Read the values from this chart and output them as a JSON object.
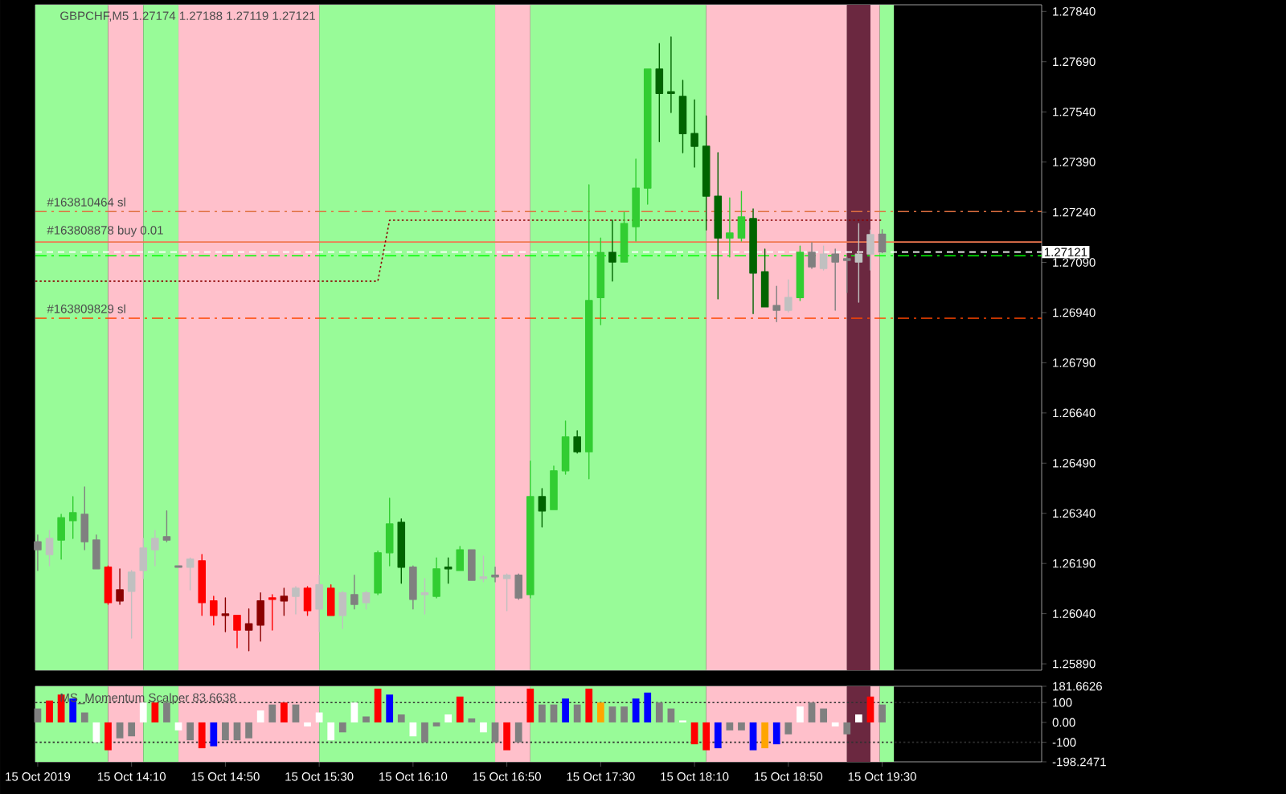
{
  "chart_data": [
    {
      "type": "candlestick",
      "title": "GBPCHF,M5  1.27174 1.27188 1.27119 1.27121",
      "x": [
        "2019-10-15T13:30",
        "2019-10-15T13:35",
        "2019-10-15T13:40",
        "2019-10-15T13:45",
        "2019-10-15T13:50",
        "2019-10-15T13:55",
        "2019-10-15T14:00",
        "2019-10-15T14:05",
        "2019-10-15T14:10",
        "2019-10-15T14:15",
        "2019-10-15T14:20",
        "2019-10-15T14:25",
        "2019-10-15T14:30",
        "2019-10-15T14:35",
        "2019-10-15T14:40",
        "2019-10-15T14:45",
        "2019-10-15T14:50",
        "2019-10-15T14:55",
        "2019-10-15T15:00",
        "2019-10-15T15:05",
        "2019-10-15T15:10",
        "2019-10-15T15:15",
        "2019-10-15T15:20",
        "2019-10-15T15:25",
        "2019-10-15T15:30",
        "2019-10-15T15:35",
        "2019-10-15T15:40",
        "2019-10-15T15:45",
        "2019-10-15T15:50",
        "2019-10-15T15:55",
        "2019-10-15T16:00",
        "2019-10-15T16:05",
        "2019-10-15T16:10",
        "2019-10-15T16:15",
        "2019-10-15T16:20",
        "2019-10-15T16:25",
        "2019-10-15T16:30",
        "2019-10-15T16:35",
        "2019-10-15T16:40",
        "2019-10-15T16:45",
        "2019-10-15T16:50",
        "2019-10-15T16:55",
        "2019-10-15T17:00",
        "2019-10-15T17:05",
        "2019-10-15T17:10",
        "2019-10-15T17:15",
        "2019-10-15T17:20",
        "2019-10-15T17:25",
        "2019-10-15T17:30",
        "2019-10-15T17:35",
        "2019-10-15T17:40",
        "2019-10-15T17:45",
        "2019-10-15T17:50",
        "2019-10-15T17:55",
        "2019-10-15T18:00",
        "2019-10-15T18:05",
        "2019-10-15T18:10",
        "2019-10-15T18:15",
        "2019-10-15T18:20",
        "2019-10-15T18:25",
        "2019-10-15T18:30",
        "2019-10-15T18:35",
        "2019-10-15T18:40",
        "2019-10-15T18:45",
        "2019-10-15T18:50",
        "2019-10-15T18:55",
        "2019-10-15T19:00",
        "2019-10-15T19:05",
        "2019-10-15T19:10",
        "2019-10-15T19:15",
        "2019-10-15T19:20",
        "2019-10-15T19:25",
        "2019-10-15T19:30"
      ],
      "ohlc": [
        [
          1.26255,
          1.26275,
          1.26169,
          1.26231
        ],
        [
          1.26217,
          1.26289,
          1.26183,
          1.26265
        ],
        [
          1.2626,
          1.26337,
          1.26203,
          1.26327
        ],
        [
          1.26318,
          1.2639,
          1.26265,
          1.26342
        ],
        [
          1.26337,
          1.26419,
          1.26231,
          1.26255
        ],
        [
          1.2626,
          1.26275,
          1.26174,
          1.26174
        ],
        [
          1.26179,
          1.26183,
          1.26068,
          1.26073
        ],
        [
          1.26078,
          1.26174,
          1.26068,
          1.26111
        ],
        [
          1.26107,
          1.26169,
          1.25967,
          1.26164
        ],
        [
          1.26169,
          1.26265,
          1.26145,
          1.26236
        ],
        [
          1.26231,
          1.26289,
          1.26183,
          1.26265
        ],
        [
          1.2627,
          1.26347,
          1.26255,
          1.2626
        ],
        [
          1.26183,
          1.26183,
          1.26179,
          1.26179
        ],
        [
          1.26179,
          1.26207,
          1.26111,
          1.26203
        ],
        [
          1.26198,
          1.26217,
          1.26035,
          1.26073
        ],
        [
          1.26078,
          1.26092,
          1.26006,
          1.26035
        ],
        [
          1.26039,
          1.26087,
          1.25986,
          1.26035
        ],
        [
          1.26035,
          1.26035,
          1.25938,
          1.25991
        ],
        [
          1.25991,
          1.26054,
          1.25929,
          1.2601
        ],
        [
          1.26006,
          1.26102,
          1.25958,
          1.26078
        ],
        [
          1.26087,
          1.26097,
          1.25991,
          1.26083
        ],
        [
          1.26078,
          1.26116,
          1.26035,
          1.26092
        ],
        [
          1.26092,
          1.26121,
          1.26039,
          1.26116
        ],
        [
          1.26116,
          1.26121,
          1.26035,
          1.26049
        ],
        [
          1.26054,
          1.26155,
          1.25986,
          1.26126
        ],
        [
          1.26116,
          1.26126,
          1.26035,
          1.26035
        ],
        [
          1.26035,
          1.26107,
          1.25996,
          1.26102
        ],
        [
          1.26097,
          1.26155,
          1.26054,
          1.26068
        ],
        [
          1.26073,
          1.26107,
          1.26054,
          1.26102
        ],
        [
          1.26102,
          1.26227,
          1.26097,
          1.26222
        ],
        [
          1.26222,
          1.26385,
          1.26183,
          1.26308
        ],
        [
          1.26313,
          1.26323,
          1.26131,
          1.26179
        ],
        [
          1.26179,
          1.26183,
          1.26054,
          1.26083
        ],
        [
          1.26102,
          1.26145,
          1.26039,
          1.26097
        ],
        [
          1.26092,
          1.26207,
          1.26087,
          1.26174
        ],
        [
          1.26179,
          1.26207,
          1.26131,
          1.26174
        ],
        [
          1.26169,
          1.26241,
          1.26169,
          1.26231
        ],
        [
          1.26231,
          1.26231,
          1.2614,
          1.2614
        ],
        [
          1.2615,
          1.26212,
          1.26135,
          1.26145
        ],
        [
          1.26155,
          1.26179,
          1.26135,
          1.2615
        ],
        [
          1.26145,
          1.26159,
          1.26049,
          1.26155
        ],
        [
          1.26155,
          1.26159,
          1.26083,
          1.26087
        ],
        [
          1.26097,
          1.26496,
          1.26087,
          1.2639
        ],
        [
          1.2639,
          1.26414,
          1.26299,
          1.26347
        ],
        [
          1.26351,
          1.26481,
          1.26351,
          1.26467
        ],
        [
          1.26467,
          1.26616,
          1.26457,
          1.26568
        ],
        [
          1.26568,
          1.26587,
          1.2652,
          1.26524
        ],
        [
          1.26524,
          1.27322,
          1.26443,
          1.26976
        ],
        [
          1.26985,
          1.27163,
          1.26904,
          1.2712
        ],
        [
          1.2712,
          1.27216,
          1.27034,
          1.27091
        ],
        [
          1.27091,
          1.2724,
          1.27091,
          1.27206
        ],
        [
          1.27197,
          1.27399,
          1.27154,
          1.27312
        ],
        [
          1.27312,
          1.27668,
          1.27264,
          1.27668
        ],
        [
          1.27668,
          1.27744,
          1.27451,
          1.27595
        ],
        [
          1.276,
          1.27764,
          1.27538,
          1.27595
        ],
        [
          1.27586,
          1.27634,
          1.27418,
          1.27475
        ],
        [
          1.27475,
          1.27576,
          1.27375,
          1.27437
        ],
        [
          1.27437,
          1.27528,
          1.27187,
          1.27288
        ],
        [
          1.27288,
          1.27418,
          1.26981,
          1.27163
        ],
        [
          1.27163,
          1.27283,
          1.27106,
          1.27178
        ],
        [
          1.27163,
          1.27302,
          1.27154,
          1.27226
        ],
        [
          1.27221,
          1.2725,
          1.26937,
          1.27058
        ],
        [
          1.27062,
          1.2713,
          1.26957,
          1.26957
        ],
        [
          1.26961,
          1.27019,
          1.26913,
          1.26947
        ],
        [
          1.26947,
          1.27038,
          1.26942,
          1.26985
        ],
        [
          1.26985,
          1.27139,
          1.26976,
          1.2712
        ],
        [
          1.2712,
          1.27149,
          1.27072,
          1.27077
        ],
        [
          1.27072,
          1.27139,
          1.27067,
          1.27115
        ],
        [
          1.27115,
          1.2713,
          1.26947,
          1.27091
        ],
        [
          1.27101,
          1.27106,
          1.27,
          1.27096
        ],
        [
          1.27091,
          1.27206,
          1.26971,
          1.27115
        ],
        [
          1.27115,
          1.27187,
          1.27067,
          1.27173
        ],
        [
          1.27174,
          1.27188,
          1.27119,
          1.27121
        ]
      ],
      "colors": [
        "#808080",
        "#c0c0c0",
        "#32cd32",
        "#32cd32",
        "#808080",
        "#808080",
        "#ff0000",
        "#8b0000",
        "#c0c0c0",
        "#c0c0c0",
        "#c0c0c0",
        "#808080",
        "#808080",
        "#c0c0c0",
        "#ff0000",
        "#ff0000",
        "#8b0000",
        "#ff0000",
        "#8b0000",
        "#8b0000",
        "#ff0000",
        "#8b0000",
        "#c0c0c0",
        "#ff0000",
        "#c0c0c0",
        "#ff0000",
        "#c0c0c0",
        "#808080",
        "#c0c0c0",
        "#32cd32",
        "#32cd32",
        "#006400",
        "#808080",
        "#c0c0c0",
        "#32cd32",
        "#006400",
        "#32cd32",
        "#808080",
        "#c0c0c0",
        "#808080",
        "#c0c0c0",
        "#808080",
        "#32cd32",
        "#006400",
        "#32cd32",
        "#32cd32",
        "#006400",
        "#32cd32",
        "#32cd32",
        "#006400",
        "#32cd32",
        "#32cd32",
        "#32cd32",
        "#006400",
        "#006400",
        "#006400",
        "#006400",
        "#006400",
        "#006400",
        "#32cd32",
        "#32cd32",
        "#006400",
        "#006400",
        "#808080",
        "#c0c0c0",
        "#32cd32",
        "#808080",
        "#c0c0c0",
        "#808080",
        "#808080",
        "#c0c0c0",
        "#c0c0c0",
        "#808080"
      ],
      "series": [
        {
          "type": "line",
          "color": "#8b0000",
          "line_style": "dotted",
          "x": [
            "2019-10-15T13:29",
            "2019-10-15T15:55",
            "2019-10-15T16:00",
            "2019-10-15T19:30"
          ],
          "values": [
            1.27034,
            1.27034,
            1.27216,
            1.27216
          ]
        }
      ],
      "xlim": [
        "2019-10-15T13:29",
        "2019-10-15T20:38"
      ],
      "ylim": [
        1.25871,
        1.2786
      ],
      "yticks": [
        {
          "value": 1.2589,
          "label": "1.25890"
        },
        {
          "value": 1.2604,
          "label": "1.26040"
        },
        {
          "value": 1.2619,
          "label": "1.26190"
        },
        {
          "value": 1.2634,
          "label": "1.26340"
        },
        {
          "value": 1.2649,
          "label": "1.26490"
        },
        {
          "value": 1.2664,
          "label": "1.26640"
        },
        {
          "value": 1.2679,
          "label": "1.26790"
        },
        {
          "value": 1.2694,
          "label": "1.26940"
        },
        {
          "value": 1.2709,
          "label": "1.27090"
        },
        {
          "value": 1.2724,
          "label": "1.27240"
        },
        {
          "value": 1.2739,
          "label": "1.27390"
        },
        {
          "value": 1.2754,
          "label": "1.27540"
        },
        {
          "value": 1.2769,
          "label": "1.27690"
        },
        {
          "value": 1.2784,
          "label": "1.27840"
        }
      ],
      "tick_labels": "y",
      "ref_lines": [
        {
          "axis": "y",
          "value": 1.27242,
          "label": "#163810464 sl",
          "color": "#e07040",
          "line_style": "dashdot"
        },
        {
          "axis": "y",
          "value": 1.27151,
          "label": "#163808878 buy 0.01",
          "color": "#f07850",
          "line_style": "solid"
        },
        {
          "axis": "y",
          "value": 1.27121,
          "label": "1.27121",
          "color": "#ffffff",
          "line_style": "dashed"
        },
        {
          "axis": "y",
          "value": 1.2711,
          "color": "#00ff00",
          "line_style": "dashdot"
        },
        {
          "axis": "y",
          "value": 1.26923,
          "label": "#163809829 sl",
          "color": "#ff4500",
          "line_style": "dashdot"
        }
      ],
      "bands": [
        {
          "axis": "x",
          "from": "2019-10-15T13:29",
          "to": "2019-10-15T14:00",
          "color": "#98fb98"
        },
        {
          "axis": "x",
          "from": "2019-10-15T14:00",
          "to": "2019-10-15T14:15",
          "color": "#ffc0cb"
        },
        {
          "axis": "x",
          "from": "2019-10-15T14:15",
          "to": "2019-10-15T14:30",
          "color": "#98fb98"
        },
        {
          "axis": "x",
          "from": "2019-10-15T14:30",
          "to": "2019-10-15T15:30",
          "color": "#ffc0cb"
        },
        {
          "axis": "x",
          "from": "2019-10-15T15:30",
          "to": "2019-10-15T16:45",
          "color": "#98fb98"
        },
        {
          "axis": "x",
          "from": "2019-10-15T16:45",
          "to": "2019-10-15T17:00",
          "color": "#ffc0cb"
        },
        {
          "axis": "x",
          "from": "2019-10-15T17:00",
          "to": "2019-10-15T18:15",
          "color": "#98fb98"
        },
        {
          "axis": "x",
          "from": "2019-10-15T18:15",
          "to": "2019-10-15T19:15",
          "color": "#ffc0cb"
        },
        {
          "axis": "x",
          "from": "2019-10-15T19:15",
          "to": "2019-10-15T19:25",
          "color": "#6b2840"
        },
        {
          "axis": "x",
          "from": "2019-10-15T19:25",
          "to": "2019-10-15T19:29",
          "color": "#ffc0cb"
        },
        {
          "axis": "x",
          "from": "2019-10-15T19:29",
          "to": "2019-10-15T19:35",
          "color": "#98fb98"
        }
      ]
    },
    {
      "type": "bar",
      "title": "MS_Momentum Scalper 83.6638",
      "x": [
        "2019-10-15T13:30",
        "2019-10-15T13:35",
        "2019-10-15T13:40",
        "2019-10-15T13:45",
        "2019-10-15T13:50",
        "2019-10-15T13:55",
        "2019-10-15T14:00",
        "2019-10-15T14:05",
        "2019-10-15T14:10",
        "2019-10-15T14:15",
        "2019-10-15T14:20",
        "2019-10-15T14:25",
        "2019-10-15T14:30",
        "2019-10-15T14:35",
        "2019-10-15T14:40",
        "2019-10-15T14:45",
        "2019-10-15T14:50",
        "2019-10-15T14:55",
        "2019-10-15T15:00",
        "2019-10-15T15:05",
        "2019-10-15T15:10",
        "2019-10-15T15:15",
        "2019-10-15T15:20",
        "2019-10-15T15:25",
        "2019-10-15T15:30",
        "2019-10-15T15:35",
        "2019-10-15T15:40",
        "2019-10-15T15:45",
        "2019-10-15T15:50",
        "2019-10-15T15:55",
        "2019-10-15T16:00",
        "2019-10-15T16:05",
        "2019-10-15T16:10",
        "2019-10-15T16:15",
        "2019-10-15T16:20",
        "2019-10-15T16:25",
        "2019-10-15T16:30",
        "2019-10-15T16:35",
        "2019-10-15T16:40",
        "2019-10-15T16:45",
        "2019-10-15T16:50",
        "2019-10-15T16:55",
        "2019-10-15T17:00",
        "2019-10-15T17:05",
        "2019-10-15T17:10",
        "2019-10-15T17:15",
        "2019-10-15T17:20",
        "2019-10-15T17:25",
        "2019-10-15T17:30",
        "2019-10-15T17:35",
        "2019-10-15T17:40",
        "2019-10-15T17:45",
        "2019-10-15T17:50",
        "2019-10-15T17:55",
        "2019-10-15T18:00",
        "2019-10-15T18:05",
        "2019-10-15T18:10",
        "2019-10-15T18:15",
        "2019-10-15T18:20",
        "2019-10-15T18:25",
        "2019-10-15T18:30",
        "2019-10-15T18:35",
        "2019-10-15T18:40",
        "2019-10-15T18:45",
        "2019-10-15T18:50",
        "2019-10-15T18:55",
        "2019-10-15T19:00",
        "2019-10-15T19:05",
        "2019-10-15T19:10",
        "2019-10-15T19:15",
        "2019-10-15T19:20",
        "2019-10-15T19:25",
        "2019-10-15T19:30"
      ],
      "values": [
        70,
        110,
        140,
        120,
        50,
        -100,
        -140,
        -80,
        -70,
        100,
        100,
        100,
        -40,
        -90,
        -130,
        -120,
        -90,
        -90,
        -80,
        60,
        90,
        100,
        90,
        -20,
        50,
        -90,
        -50,
        100,
        30,
        170,
        140,
        40,
        -70,
        -100,
        -20,
        40,
        130,
        20,
        -50,
        -100,
        -140,
        -100,
        170,
        90,
        90,
        120,
        90,
        170,
        100,
        80,
        80,
        120,
        150,
        100,
        70,
        10,
        -110,
        -140,
        -130,
        -40,
        -40,
        -140,
        -130,
        -110,
        -60,
        80,
        100,
        70,
        -20,
        -60,
        40,
        130,
        90
      ],
      "colors": [
        "#808080",
        "#ff0000",
        "#ff0000",
        "#0000ff",
        "#808080",
        "#ffffff",
        "#ff0000",
        "#808080",
        "#808080",
        "#ffffff",
        "#ff0000",
        "#808080",
        "#ffffff",
        "#808080",
        "#ff0000",
        "#0000ff",
        "#808080",
        "#808080",
        "#808080",
        "#ffffff",
        "#808080",
        "#ff0000",
        "#808080",
        "#ffffff",
        "#ffffff",
        "#ffffff",
        "#808080",
        "#ffffff",
        "#808080",
        "#ff0000",
        "#0000ff",
        "#808080",
        "#ffffff",
        "#808080",
        "#808080",
        "#ffffff",
        "#ff0000",
        "#808080",
        "#ffffff",
        "#808080",
        "#ff0000",
        "#808080",
        "#ff0000",
        "#808080",
        "#808080",
        "#0000ff",
        "#808080",
        "#ff0000",
        "#ffa500",
        "#808080",
        "#808080",
        "#0000ff",
        "#0000ff",
        "#808080",
        "#808080",
        "#ffffff",
        "#ff0000",
        "#ff0000",
        "#0000ff",
        "#808080",
        "#808080",
        "#0000ff",
        "#ffa500",
        "#0000ff",
        "#808080",
        "#ffffff",
        "#808080",
        "#808080",
        "#ffffff",
        "#808080",
        "#ffffff",
        "#ff0000",
        "#808080"
      ],
      "xlim": [
        "2019-10-15T13:29",
        "2019-10-15T20:38"
      ],
      "ylim": [
        -198.2471,
        181.6626
      ],
      "xticks": [
        {
          "value": "2019-10-15T13:30",
          "label": "15 Oct 2019"
        },
        {
          "value": "2019-10-15T14:10",
          "label": "15 Oct 14:10"
        },
        {
          "value": "2019-10-15T14:50",
          "label": "15 Oct 14:50"
        },
        {
          "value": "2019-10-15T15:30",
          "label": "15 Oct 15:30"
        },
        {
          "value": "2019-10-15T16:10",
          "label": "15 Oct 16:10"
        },
        {
          "value": "2019-10-15T16:50",
          "label": "15 Oct 16:50"
        },
        {
          "value": "2019-10-15T17:30",
          "label": "15 Oct 17:30"
        },
        {
          "value": "2019-10-15T18:10",
          "label": "15 Oct 18:10"
        },
        {
          "value": "2019-10-15T18:50",
          "label": "15 Oct 18:50"
        },
        {
          "value": "2019-10-15T19:30",
          "label": "15 Oct 19:30"
        }
      ],
      "yticks": [
        181.6626,
        100,
        {
          "value": 0,
          "label": "0.00"
        },
        -100,
        -198.2471
      ],
      "ref_lines": [
        {
          "axis": "y",
          "value": 100,
          "color": "#303030",
          "line_style": "dotted"
        },
        {
          "axis": "y",
          "value": -100,
          "color": "#303030",
          "line_style": "dotted"
        }
      ],
      "bands": [
        {
          "axis": "x",
          "from": "2019-10-15T13:29",
          "to": "2019-10-15T14:00",
          "color": "#98fb98"
        },
        {
          "axis": "x",
          "from": "2019-10-15T14:00",
          "to": "2019-10-15T14:15",
          "color": "#ffc0cb"
        },
        {
          "axis": "x",
          "from": "2019-10-15T14:15",
          "to": "2019-10-15T14:30",
          "color": "#98fb98"
        },
        {
          "axis": "x",
          "from": "2019-10-15T14:30",
          "to": "2019-10-15T15:30",
          "color": "#ffc0cb"
        },
        {
          "axis": "x",
          "from": "2019-10-15T15:30",
          "to": "2019-10-15T16:45",
          "color": "#98fb98"
        },
        {
          "axis": "x",
          "from": "2019-10-15T16:45",
          "to": "2019-10-15T17:00",
          "color": "#ffc0cb"
        },
        {
          "axis": "x",
          "from": "2019-10-15T17:00",
          "to": "2019-10-15T18:15",
          "color": "#98fb98"
        },
        {
          "axis": "x",
          "from": "2019-10-15T18:15",
          "to": "2019-10-15T19:15",
          "color": "#ffc0cb"
        },
        {
          "axis": "x",
          "from": "2019-10-15T19:15",
          "to": "2019-10-15T19:25",
          "color": "#6b2840"
        },
        {
          "axis": "x",
          "from": "2019-10-15T19:25",
          "to": "2019-10-15T19:29",
          "color": "#ffc0cb"
        },
        {
          "axis": "x",
          "from": "2019-10-15T19:29",
          "to": "2019-10-15T19:35",
          "color": "#98fb98"
        }
      ]
    }
  ]
}
